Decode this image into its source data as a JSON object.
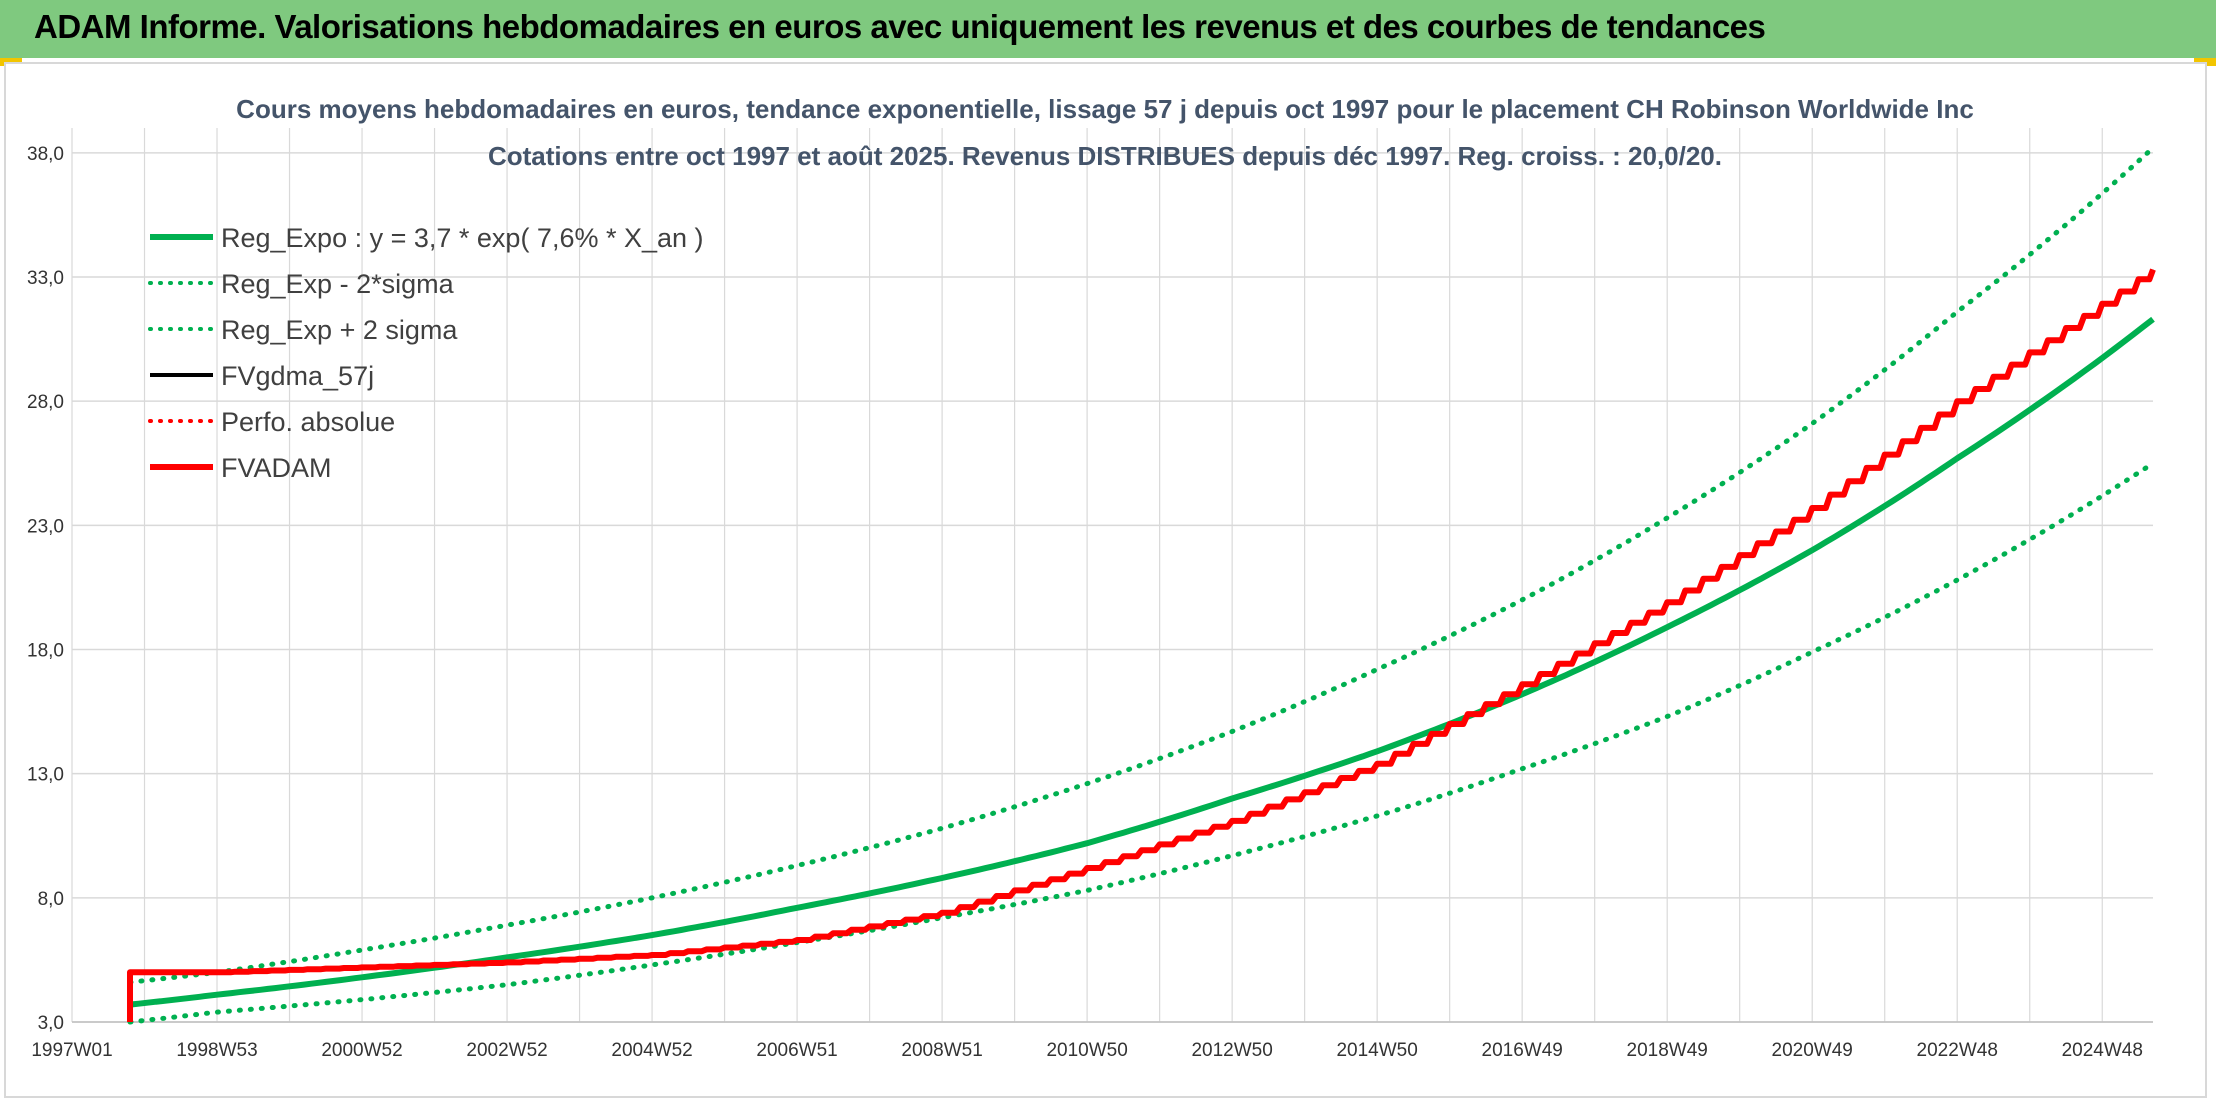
{
  "header": {
    "banner_title": "ADAM Informe. Valorisations hebdomadaires en euros avec uniquement les revenus et des courbes de tendances"
  },
  "colors": {
    "banner_bg": "#7fc97f",
    "reg_green": "#00b050",
    "adam_red": "#ff0000",
    "fv_black": "#000000",
    "grid": "#d9d9d9"
  },
  "chart_data": {
    "type": "line",
    "title_line1": "Cours moyens hebdomadaires en euros, tendance exponentielle, lissage 57 j depuis oct 1997 pour le placement CH Robinson  Worldwide Inc",
    "title_line2": "Cotations entre oct 1997 et août 2025. Revenus DISTRIBUES depuis déc 1997. Reg. croiss. : 20,0/20.",
    "xlabel": "",
    "ylabel": "",
    "xlim": [
      1997.0,
      2025.7
    ],
    "ylim": [
      3.0,
      39.0
    ],
    "y_ticks": [
      3.0,
      8.0,
      13.0,
      18.0,
      23.0,
      28.0,
      33.0,
      38.0
    ],
    "y_tick_labels": [
      "3,0",
      "8,0",
      "13,0",
      "18,0",
      "23,0",
      "28,0",
      "33,0",
      "38,0"
    ],
    "x_tick_labels": [
      "1997W01",
      "1998W53",
      "2000W52",
      "2002W52",
      "2004W52",
      "2006W51",
      "2008W51",
      "2010W50",
      "2012W50",
      "2014W50",
      "2016W49",
      "2018W49",
      "2020W49",
      "2022W48",
      "2024W48"
    ],
    "x_ticks": [
      1997.0,
      1999.0,
      2001.0,
      2003.0,
      2005.0,
      2007.0,
      2009.0,
      2011.0,
      2013.0,
      2015.0,
      2017.0,
      2019.0,
      2021.0,
      2023.0,
      2025.0
    ],
    "x_minor_ticks": [
      1998.0,
      2000.0,
      2002.0,
      2004.0,
      2006.0,
      2008.0,
      2010.0,
      2012.0,
      2014.0,
      2016.0,
      2018.0,
      2020.0,
      2022.0,
      2024.0
    ],
    "grid": true,
    "legend_position": "top-left",
    "series": [
      {
        "name": "Reg_Expo : y = 3,7 * exp( 7,6% *  X_an )",
        "color": "#00b050",
        "style": "solid",
        "width": 6,
        "x": [
          1997.8,
          1999,
          2001,
          2003,
          2005,
          2007,
          2009,
          2011,
          2013,
          2015,
          2017,
          2019,
          2021,
          2023,
          2025.7
        ],
        "y": [
          3.7,
          4.1,
          4.8,
          5.6,
          6.5,
          7.6,
          8.8,
          10.2,
          12.0,
          13.9,
          16.2,
          18.9,
          22.0,
          25.7,
          31.3
        ]
      },
      {
        "name": "Reg_Exp - 2*sigma",
        "color": "#00b050",
        "style": "dotted",
        "width": 5,
        "x": [
          1997.8,
          1999,
          2001,
          2003,
          2005,
          2007,
          2009,
          2011,
          2013,
          2015,
          2017,
          2019,
          2021,
          2023,
          2025.7
        ],
        "y": [
          3.0,
          3.4,
          3.9,
          4.5,
          5.3,
          6.2,
          7.2,
          8.3,
          9.7,
          11.3,
          13.2,
          15.3,
          17.9,
          20.8,
          25.5
        ]
      },
      {
        "name": "Reg_Exp + 2 sigma",
        "color": "#00b050",
        "style": "dotted",
        "width": 5,
        "x": [
          1997.8,
          1999,
          2001,
          2003,
          2005,
          2007,
          2009,
          2011,
          2013,
          2015,
          2017,
          2019,
          2021,
          2023,
          2025.7
        ],
        "y": [
          4.6,
          5.0,
          5.9,
          6.9,
          8.0,
          9.3,
          10.8,
          12.6,
          14.7,
          17.2,
          20.0,
          23.3,
          27.1,
          31.6,
          38.2
        ]
      },
      {
        "name": "FVgdma_57j",
        "color": "#000000",
        "style": "solid",
        "width": 3,
        "x": [
          1997.8,
          1997.8,
          1999,
          2001,
          2003,
          2005,
          2007,
          2009,
          2011,
          2013,
          2015,
          2017,
          2019,
          2021,
          2023,
          2025.7
        ],
        "y": [
          3.0,
          5.0,
          5.0,
          5.2,
          5.4,
          5.7,
          6.3,
          7.4,
          9.2,
          11.1,
          13.4,
          16.6,
          19.9,
          23.7,
          28.0,
          33.3
        ]
      },
      {
        "name": "Perfo. absolue",
        "color": "#ff0000",
        "style": "dotted",
        "width": 3,
        "x": [],
        "y": []
      },
      {
        "name": "FVADAM",
        "color": "#ff0000",
        "style": "solid",
        "width": 6,
        "stepped": true,
        "x": [
          1997.8,
          1997.8,
          1999,
          2001,
          2003,
          2005,
          2007,
          2009,
          2011,
          2013,
          2015,
          2017,
          2019,
          2021,
          2023,
          2025.7
        ],
        "y": [
          3.0,
          5.0,
          5.0,
          5.2,
          5.4,
          5.7,
          6.3,
          7.4,
          9.2,
          11.1,
          13.4,
          16.6,
          19.9,
          23.7,
          28.0,
          33.3
        ]
      }
    ]
  }
}
